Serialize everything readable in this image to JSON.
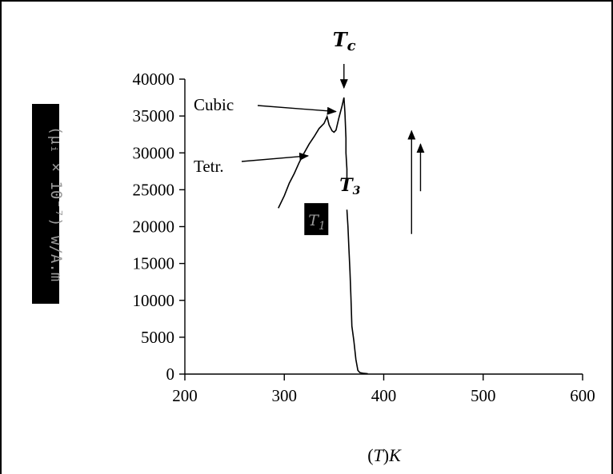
{
  "chart_data": {
    "type": "line",
    "xlabel": "(T)K",
    "ylabel": "(μᵢ × 10⁻⁷) w/A.m",
    "xlim": [
      200,
      600
    ],
    "ylim": [
      0,
      40000
    ],
    "x_ticks": [
      "200",
      "300",
      "400",
      "500",
      "600"
    ],
    "y_ticks": [
      "0",
      "5000",
      "10000",
      "15000",
      "20000",
      "25000",
      "30000",
      "35000",
      "40000"
    ],
    "grid": false,
    "legend": "none",
    "series": [
      {
        "color": "#000000",
        "points": [
          [
            294,
            22500
          ],
          [
            300,
            24200
          ],
          [
            305,
            25900
          ],
          [
            310,
            27200
          ],
          [
            315,
            28700
          ],
          [
            320,
            30000
          ],
          [
            325,
            31200
          ],
          [
            330,
            32200
          ],
          [
            335,
            33300
          ],
          [
            340,
            34000
          ],
          [
            343,
            34900
          ],
          [
            345,
            33800
          ],
          [
            348,
            33000
          ],
          [
            350,
            32800
          ],
          [
            352,
            33100
          ],
          [
            355,
            34800
          ],
          [
            358,
            36300
          ],
          [
            360,
            37500
          ],
          [
            361,
            35500
          ],
          [
            362,
            32000
          ],
          [
            362,
            30000
          ],
          [
            363,
            27800
          ],
          [
            363,
            26400
          ]
        ]
      },
      {
        "color": "#000000",
        "points": [
          [
            363,
            22300
          ],
          [
            364,
            20000
          ],
          [
            365,
            17000
          ],
          [
            366,
            14000
          ],
          [
            367,
            10500
          ],
          [
            368,
            6500
          ],
          [
            370,
            4500
          ],
          [
            372,
            2000
          ],
          [
            374,
            500
          ],
          [
            376,
            200
          ],
          [
            380,
            100
          ],
          [
            384,
            50
          ]
        ]
      }
    ],
    "annotations": [
      {
        "text": "Cubic",
        "target": [
          352,
          35600
        ]
      },
      {
        "text": "Tetr.",
        "target": [
          324,
          29600
        ]
      },
      {
        "text": "T",
        "subscript": "c",
        "target": [
          360,
          38800
        ]
      },
      {
        "text": "T",
        "subscript": "3",
        "target": [
          362,
          24800
        ]
      },
      {
        "text": "T",
        "subscript": "1",
        "target": [
          362,
          20800
        ]
      }
    ],
    "up_arrows": [
      {
        "x": 428,
        "from": 19000,
        "to": 33000
      },
      {
        "x": 437,
        "from": 24800,
        "to": 31200
      }
    ]
  }
}
